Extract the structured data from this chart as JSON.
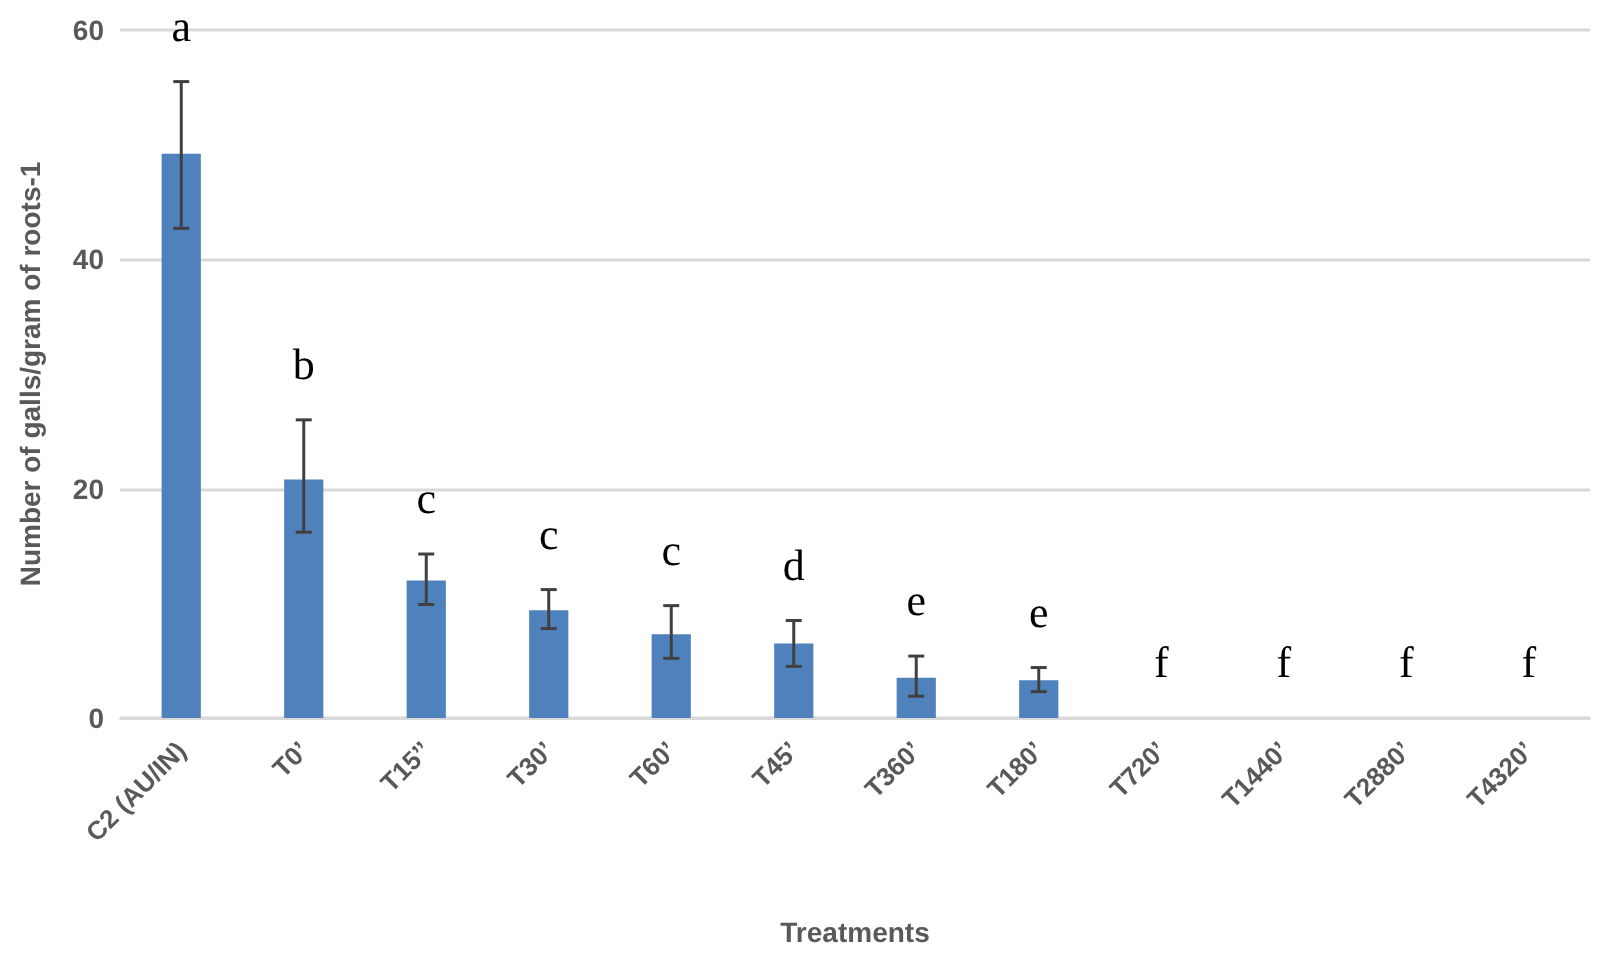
{
  "chart_data": {
    "type": "bar",
    "xlabel": "Treatments",
    "ylabel": "Number of galls/gram of roots-1",
    "categories": [
      "C2 (AU/IN)",
      "T0’",
      "T15’’",
      "T30’",
      "T60’",
      "T45’",
      "T360’",
      "T180’",
      "T720’",
      "T1440’",
      "T2880’",
      "T4320’"
    ],
    "values": [
      49.2,
      20.8,
      12.0,
      9.4,
      7.3,
      6.5,
      3.5,
      3.3,
      0,
      0,
      0,
      0
    ],
    "errors": [
      [
        42.7,
        55.5
      ],
      [
        16.2,
        26.0
      ],
      [
        9.9,
        14.3
      ],
      [
        7.8,
        11.2
      ],
      [
        5.2,
        9.8
      ],
      [
        4.5,
        8.5
      ],
      [
        1.9,
        5.4
      ],
      [
        2.3,
        4.4
      ],
      null,
      null,
      null,
      null
    ],
    "color": "#4f81bd",
    "ylim": [
      0,
      60
    ],
    "yticks": [
      0,
      20,
      40,
      60
    ],
    "grid": "y",
    "annotations": [
      "a",
      "b",
      "c",
      "c",
      "c",
      "d",
      "e",
      "e",
      "f",
      "f",
      "f",
      "f"
    ]
  }
}
